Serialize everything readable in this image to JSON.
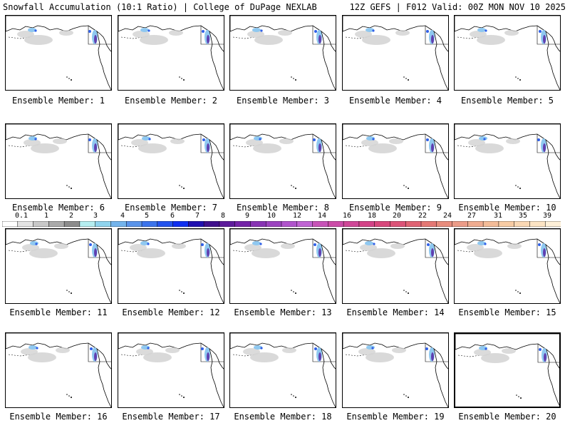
{
  "header": {
    "title": "Snowfall Accumulation (10:1 Ratio) | College of DuPage NEXLAB",
    "run_info": "12Z GEFS | F012 Valid: 00Z MON NOV 10 2025"
  },
  "colorbar": {
    "labels": [
      "0.1",
      "1",
      "2",
      "3",
      "4",
      "5",
      "6",
      "7",
      "8",
      "9",
      "10",
      "12",
      "14",
      "16",
      "18",
      "20",
      "22",
      "24",
      "27",
      "31",
      "35",
      "39"
    ],
    "colors": [
      "#ffffff",
      "#e4e4e4",
      "#c8c8c8",
      "#aaaaaa",
      "#8c8c8c",
      "#b5eef0",
      "#8fd4ee",
      "#74b4ec",
      "#5a94ea",
      "#3c74ec",
      "#2454ee",
      "#1030f0",
      "#2010b0",
      "#40108c",
      "#5e1c9c",
      "#7424a8",
      "#8834b4",
      "#9c44c0",
      "#b054cc",
      "#c064d4",
      "#c854b8",
      "#cc4ca8",
      "#d04898",
      "#d44488",
      "#d8487c",
      "#dc5478",
      "#e06474",
      "#e47874",
      "#e88c7c",
      "#ec9c88",
      "#f0ac90",
      "#f4bc98",
      "#f8cca4",
      "#fad8b4",
      "#fce4c4",
      "#fef0d8"
    ]
  },
  "map_colors": {
    "land_snow_gray": "#d2d2d2",
    "snow_light_blue": "#8fc8f0",
    "snow_blue": "#3060e8",
    "snow_purple": "#6040b0",
    "coastline": "#000000"
  },
  "members": [
    {
      "label": "Ensemble Member: 1",
      "selected": false
    },
    {
      "label": "Ensemble Member: 2",
      "selected": false
    },
    {
      "label": "Ensemble Member: 3",
      "selected": false
    },
    {
      "label": "Ensemble Member: 4",
      "selected": false
    },
    {
      "label": "Ensemble Member: 5",
      "selected": false
    },
    {
      "label": "Ensemble Member: 6",
      "selected": false
    },
    {
      "label": "Ensemble Member: 7",
      "selected": false
    },
    {
      "label": "Ensemble Member: 8",
      "selected": false
    },
    {
      "label": "Ensemble Member: 9",
      "selected": false
    },
    {
      "label": "Ensemble Member: 10",
      "selected": false
    },
    {
      "label": "Ensemble Member: 11",
      "selected": false
    },
    {
      "label": "Ensemble Member: 12",
      "selected": false
    },
    {
      "label": "Ensemble Member: 13",
      "selected": false
    },
    {
      "label": "Ensemble Member: 14",
      "selected": false
    },
    {
      "label": "Ensemble Member: 15",
      "selected": false
    },
    {
      "label": "Ensemble Member: 16",
      "selected": false
    },
    {
      "label": "Ensemble Member: 17",
      "selected": false
    },
    {
      "label": "Ensemble Member: 18",
      "selected": false
    },
    {
      "label": "Ensemble Member: 19",
      "selected": false
    },
    {
      "label": "Ensemble Member: 20",
      "selected": true
    }
  ]
}
